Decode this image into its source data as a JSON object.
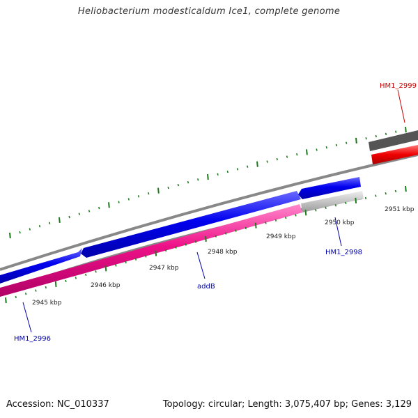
{
  "title": "Heliobacterium modesticaldum Ice1, complete genome",
  "footer": {
    "accession": "Accession: NC_010337",
    "summary": "Topology: circular; Length: 3,075,407 bp; Genes: 3,129"
  },
  "colors": {
    "backbone": "#888888",
    "tick": "#1e7a1e",
    "forward_gene": "#0000ee",
    "reverse_gene": "#ee1188",
    "rna_gene": "#ee0000",
    "other_gene": "#c0c0c0",
    "label_blue": "#0000aa",
    "label_red": "#cc0000"
  },
  "tick_labels": [
    "2945 kbp",
    "2946 kbp",
    "2947 kbp",
    "2948 kbp",
    "2949 kbp",
    "2950 kbp",
    "2951 kbp"
  ],
  "gene_labels": [
    {
      "text": "HM1_2999",
      "color": "#cc0000"
    },
    {
      "text": "HM1_2998",
      "color": "#0000aa"
    },
    {
      "text": "addB",
      "color": "#0000aa"
    },
    {
      "text": "HM1_2996",
      "color": "#0000aa"
    }
  ]
}
